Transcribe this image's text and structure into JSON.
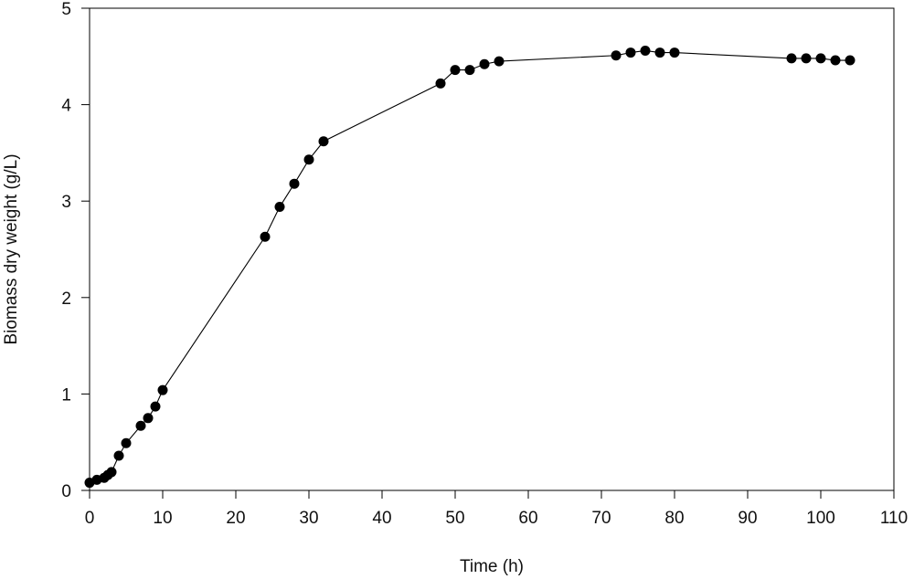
{
  "chart_data": {
    "type": "line",
    "title": "",
    "xlabel": "Time (h)",
    "ylabel": "Biomass dry weight (g/L)",
    "xlim": [
      0,
      110
    ],
    "ylim": [
      0,
      5
    ],
    "x_ticks": [
      0,
      10,
      20,
      30,
      40,
      50,
      60,
      70,
      80,
      90,
      100,
      110
    ],
    "y_ticks": [
      0,
      1,
      2,
      3,
      4,
      5
    ],
    "x_tick_labels": [
      "0",
      "10",
      "20",
      "30",
      "40",
      "50",
      "60",
      "70",
      "80",
      "90",
      "100",
      "110"
    ],
    "y_tick_labels": [
      "0",
      "1",
      "2",
      "3",
      "4",
      "5"
    ],
    "grid": false,
    "legend": "none",
    "series": [
      {
        "marker": "filled-circle",
        "color": "#000000",
        "x": [
          0,
          1,
          2,
          2.5,
          3,
          4,
          5,
          7,
          8,
          9,
          10,
          24,
          26,
          28,
          30,
          32,
          48,
          50,
          52,
          54,
          56,
          72,
          74,
          76,
          78,
          80,
          96,
          98,
          100,
          102,
          104
        ],
        "y": [
          0.08,
          0.11,
          0.13,
          0.16,
          0.19,
          0.36,
          0.49,
          0.67,
          0.75,
          0.87,
          1.04,
          2.63,
          2.94,
          3.18,
          3.43,
          3.62,
          4.22,
          4.36,
          4.36,
          4.42,
          4.45,
          4.51,
          4.54,
          4.56,
          4.54,
          4.54,
          4.48,
          4.48,
          4.48,
          4.46,
          4.46
        ]
      }
    ]
  }
}
